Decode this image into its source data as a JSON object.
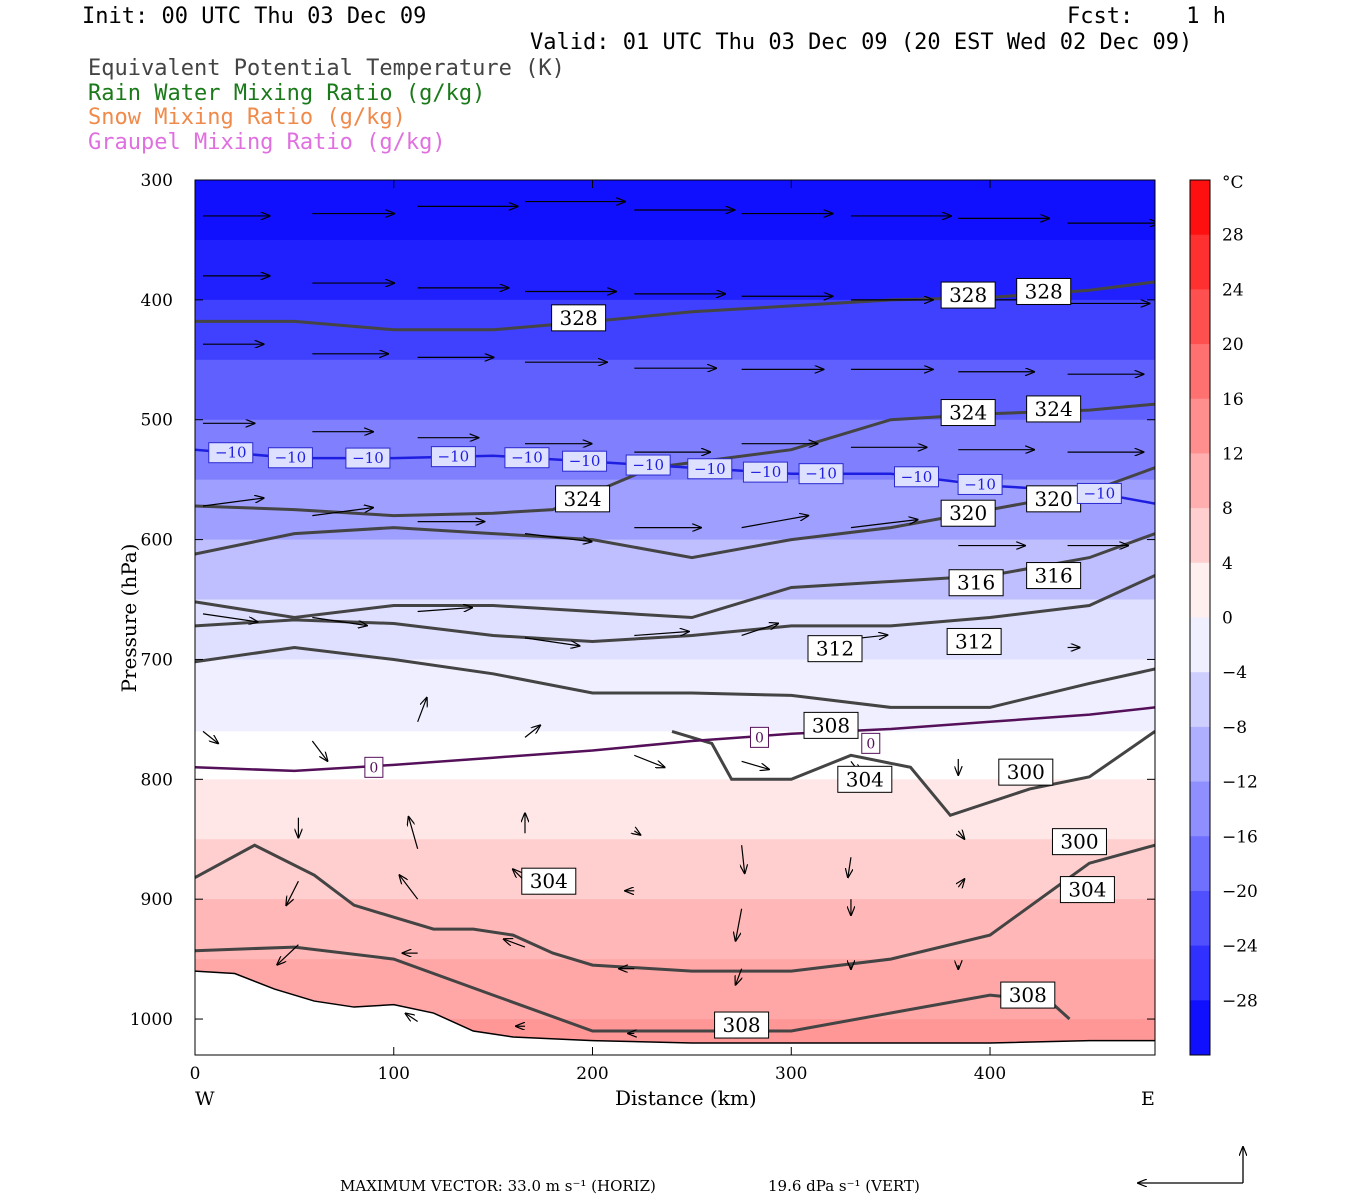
{
  "header": {
    "init": "Init: 00 UTC Thu 03 Dec 09",
    "fcst": "Fcst:    1 h",
    "valid": "Valid: 01 UTC Thu 03 Dec 09 (20 EST Wed 02 Dec 09)",
    "legend": [
      {
        "text": "Equivalent Potential Temperature (K)",
        "color": "#444444"
      },
      {
        "text": "Rain Water Mixing Ratio (g/kg)",
        "color": "#1a7a1a"
      },
      {
        "text": "Snow Mixing Ratio (g/kg)",
        "color": "#f08a4b"
      },
      {
        "text": "Graupel Mixing Ratio (g/kg)",
        "color": "#e070e0"
      }
    ]
  },
  "chart_data": {
    "type": "cross-section",
    "xlabel": "Distance (km)",
    "ylabel": "Pressure (hPa)",
    "xlim": [
      0,
      483
    ],
    "ylim": [
      300,
      1030
    ],
    "xticks": [
      0,
      100,
      200,
      300,
      400
    ],
    "yticks": [
      300,
      400,
      500,
      600,
      700,
      800,
      900,
      1000
    ],
    "x_ends": {
      "left": "W",
      "right": "E"
    },
    "colorbar": {
      "unit": "°C",
      "ticks": [
        28,
        24,
        20,
        16,
        12,
        8,
        4,
        0,
        -4,
        -8,
        -12,
        -16,
        -20,
        -24,
        -28
      ],
      "range": [
        -32,
        32
      ]
    },
    "temperature_bands": [
      {
        "p": 300,
        "t": -30
      },
      {
        "p": 350,
        "t": -28
      },
      {
        "p": 400,
        "t": -24
      },
      {
        "p": 450,
        "t": -20
      },
      {
        "p": 500,
        "t": -16
      },
      {
        "p": 550,
        "t": -12
      },
      {
        "p": 600,
        "t": -8
      },
      {
        "p": 650,
        "t": -4
      },
      {
        "p": 700,
        "t": -2
      },
      {
        "p": 760,
        "t": 0
      },
      {
        "p": 800,
        "t": 3
      },
      {
        "p": 850,
        "t": 6
      },
      {
        "p": 900,
        "t": 9
      },
      {
        "p": 950,
        "t": 11
      },
      {
        "p": 1000,
        "t": 13
      }
    ],
    "isotherm_minus10": [
      [
        0,
        525
      ],
      [
        50,
        532
      ],
      [
        100,
        532
      ],
      [
        150,
        530
      ],
      [
        200,
        535
      ],
      [
        250,
        540
      ],
      [
        300,
        545
      ],
      [
        350,
        545
      ],
      [
        400,
        555
      ],
      [
        450,
        560
      ],
      [
        483,
        570
      ]
    ],
    "isotherm_zero": [
      [
        0,
        790
      ],
      [
        50,
        793
      ],
      [
        100,
        788
      ],
      [
        150,
        782
      ],
      [
        200,
        776
      ],
      [
        250,
        768
      ],
      [
        300,
        762
      ],
      [
        350,
        758
      ],
      [
        400,
        752
      ],
      [
        450,
        746
      ],
      [
        483,
        740
      ]
    ],
    "theta_e_contours": [
      {
        "label": "328",
        "points": [
          [
            0,
            418
          ],
          [
            50,
            418
          ],
          [
            100,
            425
          ],
          [
            150,
            425
          ],
          [
            200,
            418
          ],
          [
            250,
            410
          ],
          [
            300,
            405
          ],
          [
            350,
            400
          ],
          [
            400,
            398
          ],
          [
            450,
            392
          ],
          [
            483,
            385
          ]
        ]
      },
      {
        "label": "324",
        "points": [
          [
            0,
            572
          ],
          [
            50,
            575
          ],
          [
            100,
            580
          ],
          [
            150,
            578
          ],
          [
            180,
            575
          ],
          [
            230,
            540
          ],
          [
            300,
            525
          ],
          [
            350,
            500
          ],
          [
            400,
            495
          ],
          [
            450,
            492
          ],
          [
            483,
            487
          ]
        ]
      },
      {
        "label": "320",
        "points": [
          [
            0,
            612
          ],
          [
            50,
            595
          ],
          [
            100,
            590
          ],
          [
            150,
            595
          ],
          [
            200,
            600
          ],
          [
            250,
            615
          ],
          [
            300,
            600
          ],
          [
            350,
            590
          ],
          [
            400,
            575
          ],
          [
            450,
            560
          ],
          [
            483,
            540
          ]
        ]
      },
      {
        "label": "316",
        "points": [
          [
            0,
            652
          ],
          [
            50,
            665
          ],
          [
            100,
            655
          ],
          [
            150,
            655
          ],
          [
            200,
            660
          ],
          [
            250,
            665
          ],
          [
            300,
            640
          ],
          [
            350,
            635
          ],
          [
            400,
            630
          ],
          [
            450,
            615
          ],
          [
            483,
            595
          ]
        ]
      },
      {
        "label": "312",
        "points": [
          [
            0,
            672
          ],
          [
            50,
            667
          ],
          [
            100,
            670
          ],
          [
            150,
            680
          ],
          [
            200,
            685
          ],
          [
            250,
            680
          ],
          [
            300,
            672
          ],
          [
            350,
            672
          ],
          [
            400,
            665
          ],
          [
            450,
            655
          ],
          [
            483,
            630
          ]
        ]
      },
      {
        "label": "308",
        "points": [
          [
            0,
            702
          ],
          [
            50,
            690
          ],
          [
            100,
            700
          ],
          [
            150,
            712
          ],
          [
            200,
            728
          ],
          [
            250,
            728
          ],
          [
            300,
            730
          ],
          [
            350,
            740
          ],
          [
            400,
            740
          ],
          [
            450,
            720
          ],
          [
            483,
            708
          ]
        ]
      },
      {
        "label": "304",
        "points": [
          [
            0,
            882
          ],
          [
            30,
            855
          ],
          [
            60,
            880
          ],
          [
            80,
            905
          ],
          [
            100,
            915
          ],
          [
            120,
            925
          ],
          [
            140,
            925
          ],
          [
            160,
            930
          ],
          [
            180,
            945
          ],
          [
            200,
            955
          ],
          [
            250,
            960
          ],
          [
            300,
            960
          ],
          [
            350,
            950
          ],
          [
            400,
            930
          ],
          [
            450,
            870
          ],
          [
            483,
            855
          ]
        ]
      },
      {
        "label": "300",
        "points": [
          [
            240,
            760
          ],
          [
            260,
            770
          ],
          [
            270,
            800
          ],
          [
            300,
            800
          ],
          [
            330,
            780
          ],
          [
            360,
            790
          ],
          [
            380,
            830
          ],
          [
            420,
            808
          ],
          [
            450,
            798
          ],
          [
            483,
            760
          ]
        ]
      },
      {
        "label": "308",
        "points": [
          [
            0,
            943
          ],
          [
            50,
            940
          ],
          [
            100,
            950
          ],
          [
            150,
            980
          ],
          [
            200,
            1010
          ],
          [
            300,
            1010
          ],
          [
            350,
            995
          ],
          [
            400,
            980
          ],
          [
            430,
            985
          ],
          [
            440,
            1000
          ]
        ]
      }
    ],
    "contour_labels": [
      {
        "text": "328",
        "x": 193,
        "p": 415
      },
      {
        "text": "328",
        "x": 389,
        "p": 396
      },
      {
        "text": "328",
        "x": 427,
        "p": 393
      },
      {
        "text": "324",
        "x": 195,
        "p": 566
      },
      {
        "text": "324",
        "x": 389,
        "p": 494
      },
      {
        "text": "324",
        "x": 432,
        "p": 491
      },
      {
        "text": "320",
        "x": 389,
        "p": 578
      },
      {
        "text": "320",
        "x": 432,
        "p": 566
      },
      {
        "text": "316",
        "x": 393,
        "p": 636
      },
      {
        "text": "316",
        "x": 432,
        "p": 630
      },
      {
        "text": "312",
        "x": 322,
        "p": 691
      },
      {
        "text": "312",
        "x": 392,
        "p": 685
      },
      {
        "text": "308",
        "x": 320,
        "p": 755
      },
      {
        "text": "304",
        "x": 337,
        "p": 800
      },
      {
        "text": "300",
        "x": 418,
        "p": 794
      },
      {
        "text": "300",
        "x": 445,
        "p": 852
      },
      {
        "text": "304",
        "x": 178,
        "p": 885
      },
      {
        "text": "304",
        "x": 449,
        "p": 892
      },
      {
        "text": "308",
        "x": 419,
        "p": 980
      },
      {
        "text": "308",
        "x": 275,
        "p": 1005
      }
    ],
    "isotherm_labels_minus10": [
      {
        "text": "-10",
        "x": 18
      },
      {
        "text": "-10",
        "x": 48
      },
      {
        "text": "-10",
        "x": 87
      },
      {
        "text": "-10",
        "x": 130
      },
      {
        "text": "-10",
        "x": 167
      },
      {
        "text": "-10",
        "x": 196
      },
      {
        "text": "-10",
        "x": 228
      },
      {
        "text": "-10",
        "x": 259
      },
      {
        "text": "-10",
        "x": 287
      },
      {
        "text": "-10",
        "x": 315
      },
      {
        "text": "-10",
        "x": 363
      },
      {
        "text": "-10",
        "x": 395
      },
      {
        "text": "-10",
        "x": 455
      }
    ],
    "isotherm_labels_zero": [
      {
        "text": "0",
        "x": 90,
        "p": 790
      },
      {
        "text": "0",
        "x": 284,
        "p": 765
      },
      {
        "text": "0",
        "x": 340,
        "p": 770
      }
    ],
    "vectors": [
      {
        "x": 0,
        "p": 330,
        "u": 22,
        "w": 0
      },
      {
        "x": 55,
        "p": 328,
        "u": 27,
        "w": 0
      },
      {
        "x": 108,
        "p": 322,
        "u": 33,
        "w": 0
      },
      {
        "x": 162,
        "p": 318,
        "u": 33,
        "w": 0
      },
      {
        "x": 217,
        "p": 325,
        "u": 33,
        "w": 0
      },
      {
        "x": 271,
        "p": 328,
        "u": 30,
        "w": 0
      },
      {
        "x": 326,
        "p": 330,
        "u": 33,
        "w": 0
      },
      {
        "x": 380,
        "p": 332,
        "u": 30,
        "w": 0
      },
      {
        "x": 435,
        "p": 336,
        "u": 30,
        "w": 0
      },
      {
        "x": 0,
        "p": 380,
        "u": 22,
        "w": 0
      },
      {
        "x": 55,
        "p": 386,
        "u": 27,
        "w": 0
      },
      {
        "x": 108,
        "p": 390,
        "u": 30,
        "w": 0
      },
      {
        "x": 162,
        "p": 393,
        "u": 30,
        "w": 0
      },
      {
        "x": 217,
        "p": 395,
        "u": 30,
        "w": 0
      },
      {
        "x": 271,
        "p": 397,
        "u": 30,
        "w": 0
      },
      {
        "x": 326,
        "p": 400,
        "u": 27,
        "w": 0
      },
      {
        "x": 380,
        "p": 400,
        "u": 27,
        "w": 0
      },
      {
        "x": 435,
        "p": 403,
        "u": 27,
        "w": 0
      },
      {
        "x": 0,
        "p": 437,
        "u": 20,
        "w": 0
      },
      {
        "x": 55,
        "p": 445,
        "u": 25,
        "w": 0
      },
      {
        "x": 108,
        "p": 448,
        "u": 25,
        "w": 0
      },
      {
        "x": 162,
        "p": 452,
        "u": 27,
        "w": 0
      },
      {
        "x": 217,
        "p": 457,
        "u": 27,
        "w": 0
      },
      {
        "x": 271,
        "p": 458,
        "u": 27,
        "w": 0
      },
      {
        "x": 326,
        "p": 458,
        "u": 27,
        "w": 0
      },
      {
        "x": 380,
        "p": 460,
        "u": 25,
        "w": 0
      },
      {
        "x": 435,
        "p": 462,
        "u": 25,
        "w": 0
      },
      {
        "x": 0,
        "p": 503,
        "u": 17,
        "w": 0
      },
      {
        "x": 55,
        "p": 510,
        "u": 20,
        "w": 0
      },
      {
        "x": 108,
        "p": 515,
        "u": 20,
        "w": 0
      },
      {
        "x": 162,
        "p": 520,
        "u": 22,
        "w": 0
      },
      {
        "x": 217,
        "p": 527,
        "u": 25,
        "w": 0
      },
      {
        "x": 271,
        "p": 520,
        "u": 25,
        "w": 0
      },
      {
        "x": 326,
        "p": 523,
        "u": 25,
        "w": 0
      },
      {
        "x": 380,
        "p": 525,
        "u": 25,
        "w": 0
      },
      {
        "x": 435,
        "p": 527,
        "u": 25,
        "w": 0
      },
      {
        "x": 0,
        "p": 572,
        "u": 20,
        "w": -2
      },
      {
        "x": 55,
        "p": 580,
        "u": 20,
        "w": -2
      },
      {
        "x": 108,
        "p": 585,
        "u": 22,
        "w": 0
      },
      {
        "x": 162,
        "p": 595,
        "u": 22,
        "w": 2
      },
      {
        "x": 217,
        "p": 590,
        "u": 22,
        "w": 0
      },
      {
        "x": 271,
        "p": 590,
        "u": 22,
        "w": -3
      },
      {
        "x": 326,
        "p": 590,
        "u": 22,
        "w": -2
      },
      {
        "x": 380,
        "p": 605,
        "u": 22,
        "w": 0
      },
      {
        "x": 435,
        "p": 605,
        "u": 20,
        "w": 0
      },
      {
        "x": 0,
        "p": 662,
        "u": 18,
        "w": 2
      },
      {
        "x": 55,
        "p": 665,
        "u": 18,
        "w": 2
      },
      {
        "x": 108,
        "p": 660,
        "u": 18,
        "w": -1
      },
      {
        "x": 162,
        "p": 682,
        "u": 18,
        "w": 2
      },
      {
        "x": 217,
        "p": 680,
        "u": 18,
        "w": -1
      },
      {
        "x": 271,
        "p": 680,
        "u": 12,
        "w": -3
      },
      {
        "x": 326,
        "p": 683,
        "u": 12,
        "w": -1
      },
      {
        "x": 380,
        "p": 690,
        "u": 8,
        "w": 0
      },
      {
        "x": 435,
        "p": 690,
        "u": 4,
        "w": 0
      },
      {
        "x": 0,
        "p": 760,
        "u": 5,
        "w": 3
      },
      {
        "x": 55,
        "p": 768,
        "u": 5,
        "w": 5
      },
      {
        "x": 108,
        "p": 752,
        "u": 3,
        "w": -6
      },
      {
        "x": 162,
        "p": 765,
        "u": 5,
        "w": -3
      },
      {
        "x": 217,
        "p": 780,
        "u": 10,
        "w": 3
      },
      {
        "x": 271,
        "p": 785,
        "u": 9,
        "w": 2
      },
      {
        "x": 326,
        "p": 785,
        "u": 3,
        "w": 3
      },
      {
        "x": 380,
        "p": 783,
        "u": 0,
        "w": 4
      },
      {
        "x": 48,
        "p": 832,
        "u": 0,
        "w": 5
      },
      {
        "x": 108,
        "p": 858,
        "u": -3,
        "w": -8
      },
      {
        "x": 162,
        "p": 845,
        "u": 0,
        "w": -5
      },
      {
        "x": 217,
        "p": 843,
        "u": 2,
        "w": 1
      },
      {
        "x": 271,
        "p": 855,
        "u": 1,
        "w": 7
      },
      {
        "x": 326,
        "p": 865,
        "u": -1,
        "w": 5
      },
      {
        "x": 380,
        "p": 843,
        "u": 2,
        "w": 2
      },
      {
        "x": 435,
        "p": 848,
        "u": 3,
        "w": 1
      },
      {
        "x": 48,
        "p": 885,
        "u": -4,
        "w": 6
      },
      {
        "x": 108,
        "p": 900,
        "u": -6,
        "w": -6
      },
      {
        "x": 162,
        "p": 885,
        "u": -4,
        "w": -3
      },
      {
        "x": 217,
        "p": 893,
        "u": -3,
        "w": 0
      },
      {
        "x": 271,
        "p": 908,
        "u": -2,
        "w": 8
      },
      {
        "x": 326,
        "p": 900,
        "u": 0,
        "w": 4
      },
      {
        "x": 380,
        "p": 890,
        "u": 2,
        "w": -2
      },
      {
        "x": 48,
        "p": 938,
        "u": -7,
        "w": 5
      },
      {
        "x": 108,
        "p": 945,
        "u": -5,
        "w": 0
      },
      {
        "x": 162,
        "p": 940,
        "u": -7,
        "w": -2
      },
      {
        "x": 217,
        "p": 958,
        "u": -5,
        "w": 0
      },
      {
        "x": 271,
        "p": 958,
        "u": -2,
        "w": 4
      },
      {
        "x": 326,
        "p": 955,
        "u": 0,
        "w": 1
      },
      {
        "x": 380,
        "p": 955,
        "u": 0,
        "w": 1
      },
      {
        "x": 108,
        "p": 1002,
        "u": -4,
        "w": -2
      },
      {
        "x": 162,
        "p": 1006,
        "u": -3,
        "w": 0
      },
      {
        "x": 217,
        "p": 1012,
        "u": -2,
        "w": 0
      }
    ]
  },
  "footer": {
    "max_vector": "MAXIMUM VECTOR:  33.0 m s⁻¹ (HORIZ)",
    "vert": "19.6 dPa s⁻¹ (VERT)"
  },
  "colors": {
    "contour": "#444444",
    "isotherm_minus10": "#1e1ee0",
    "isotherm_zero": "#55105a"
  }
}
